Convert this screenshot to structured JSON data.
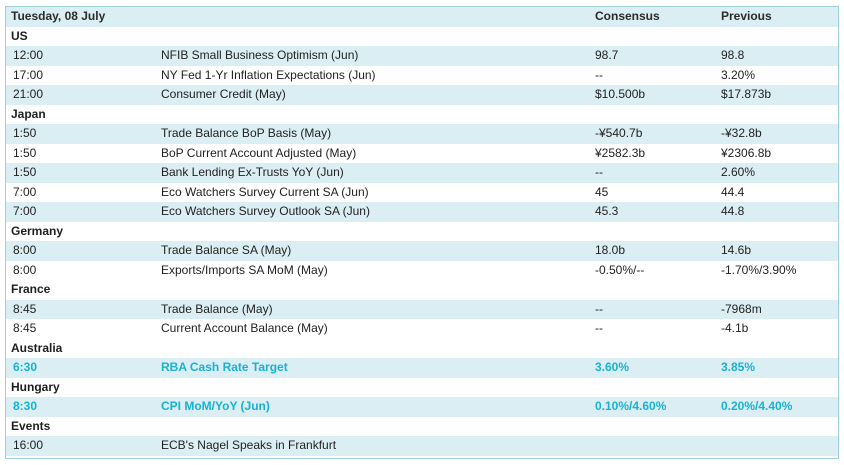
{
  "header": {
    "date": "Tuesday, 08 July",
    "consensus": "Consensus",
    "previous": "Previous"
  },
  "regions": [
    {
      "name": "US",
      "rows": [
        {
          "time": "12:00",
          "event": "NFIB Small Business Optimism (Jun)",
          "consensus": "98.7",
          "previous": "98.8"
        },
        {
          "time": "17:00",
          "event": "NY Fed 1-Yr Inflation Expectations (Jun)",
          "consensus": "--",
          "previous": "3.20%"
        },
        {
          "time": "21:00",
          "event": "Consumer Credit (May)",
          "consensus": "$10.500b",
          "previous": "$17.873b"
        }
      ]
    },
    {
      "name": "Japan",
      "rows": [
        {
          "time": "1:50",
          "event": "Trade Balance BoP Basis (May)",
          "consensus": "-¥540.7b",
          "previous": "-¥32.8b"
        },
        {
          "time": "1:50",
          "event": "BoP Current Account Adjusted (May)",
          "consensus": "¥2582.3b",
          "previous": "¥2306.8b"
        },
        {
          "time": "1:50",
          "event": "Bank Lending Ex-Trusts YoY (Jun)",
          "consensus": "--",
          "previous": "2.60%"
        },
        {
          "time": "7:00",
          "event": "Eco Watchers Survey Current SA (Jun)",
          "consensus": "45",
          "previous": "44.4"
        },
        {
          "time": "7:00",
          "event": "Eco Watchers Survey Outlook SA (Jun)",
          "consensus": "45.3",
          "previous": "44.8"
        }
      ]
    },
    {
      "name": "Germany",
      "rows": [
        {
          "time": "8:00",
          "event": "Trade Balance SA (May)",
          "consensus": "18.0b",
          "previous": "14.6b"
        },
        {
          "time": "8:00",
          "event": "Exports/Imports SA MoM (May)",
          "consensus": "-0.50%/--",
          "previous": "-1.70%/3.90%"
        }
      ]
    },
    {
      "name": "France",
      "rows": [
        {
          "time": "8:45",
          "event": "Trade Balance (May)",
          "consensus": "--",
          "previous": "-7968m"
        },
        {
          "time": "8:45",
          "event": "Current Account Balance (May)",
          "consensus": "--",
          "previous": "-4.1b"
        }
      ]
    },
    {
      "name": "Australia",
      "rows": [
        {
          "time": "6:30",
          "event": "RBA Cash Rate Target",
          "consensus": "3.60%",
          "previous": "3.85%"
        }
      ]
    },
    {
      "name": "Hungary",
      "rows": [
        {
          "time": "8:30",
          "event": "CPI MoM/YoY (Jun)",
          "consensus": "0.10%/4.60%",
          "previous": "0.20%/4.40%"
        }
      ]
    },
    {
      "name": "Events",
      "rows": [
        {
          "time": "16:00",
          "event": "ECB's Nagel Speaks in Frankfurt",
          "consensus": "",
          "previous": ""
        }
      ]
    }
  ],
  "highlight_color": "#17b3d2",
  "band_color": "#dbeef3"
}
